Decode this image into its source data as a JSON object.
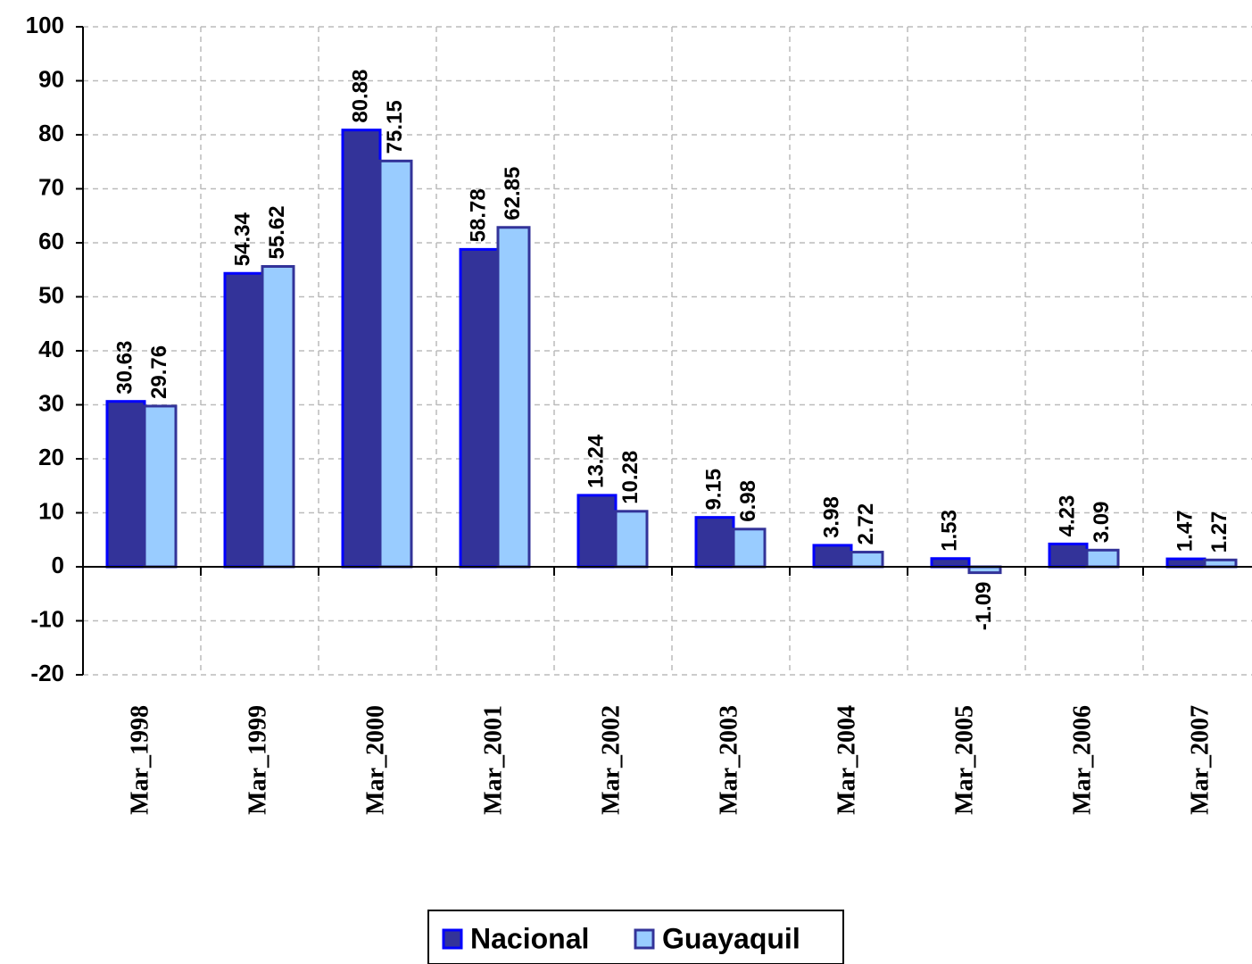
{
  "chart_data": {
    "type": "bar",
    "categories": [
      "Mar_1998",
      "Mar_1999",
      "Mar_2000",
      "Mar_2001",
      "Mar_2002",
      "Mar_2003",
      "Mar_2004",
      "Mar_2005",
      "Mar_2006",
      "Mar_2007"
    ],
    "series": [
      {
        "name": "Nacional",
        "color": "#333399",
        "values": [
          30.63,
          54.34,
          80.88,
          58.78,
          13.24,
          9.15,
          3.98,
          1.53,
          4.23,
          1.47
        ]
      },
      {
        "name": "Guayaquil",
        "color": "#99ccff",
        "values": [
          29.76,
          55.62,
          75.15,
          62.85,
          10.28,
          6.98,
          2.72,
          -1.09,
          3.09,
          1.27
        ]
      }
    ],
    "ylim": [
      -20,
      100
    ],
    "yticks": [
      -20,
      -10,
      0,
      10,
      20,
      30,
      40,
      50,
      60,
      70,
      80,
      90,
      100
    ],
    "grid": true,
    "legend": "bottom"
  }
}
